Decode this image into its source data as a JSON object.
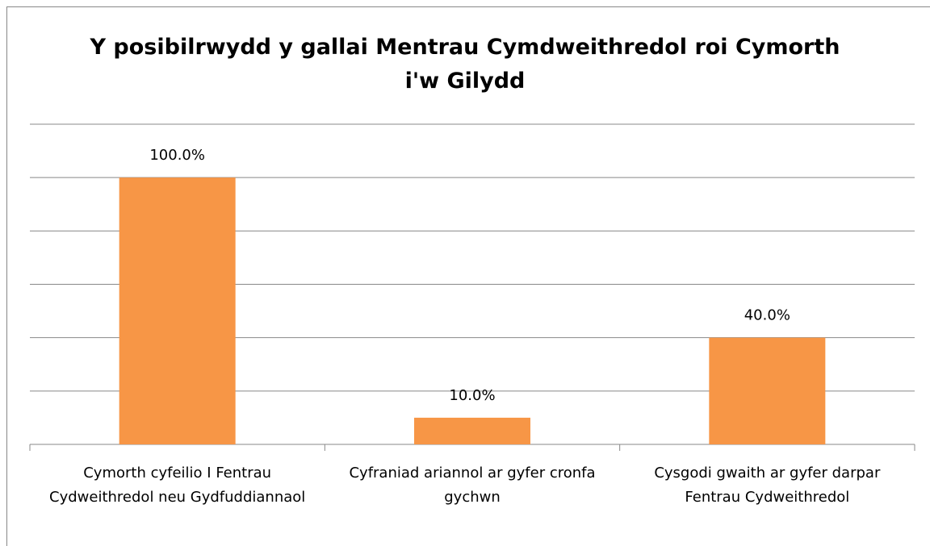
{
  "chart_data": {
    "type": "bar",
    "title": "Y posibilrwydd y gallai Mentrau Cymdweithredol roi Cymorth i'w Gilydd",
    "categories": [
      "Cymorth cyfeilio I Fentrau Cydweithredol neu Gydfuddiannaol",
      "Cyfraniad ariannol ar gyfer cronfa gychwn",
      "Cysgodi gwaith ar gyfer darpar Fentrau Cydweithredol"
    ],
    "values": [
      100,
      10,
      40
    ],
    "value_labels": [
      "100.0%",
      "10.0%",
      "40.0%"
    ],
    "color": "#f79646",
    "ylim": [
      0,
      120
    ],
    "yticks": [
      0,
      20,
      40,
      60,
      80,
      100,
      120
    ],
    "grid": true
  }
}
